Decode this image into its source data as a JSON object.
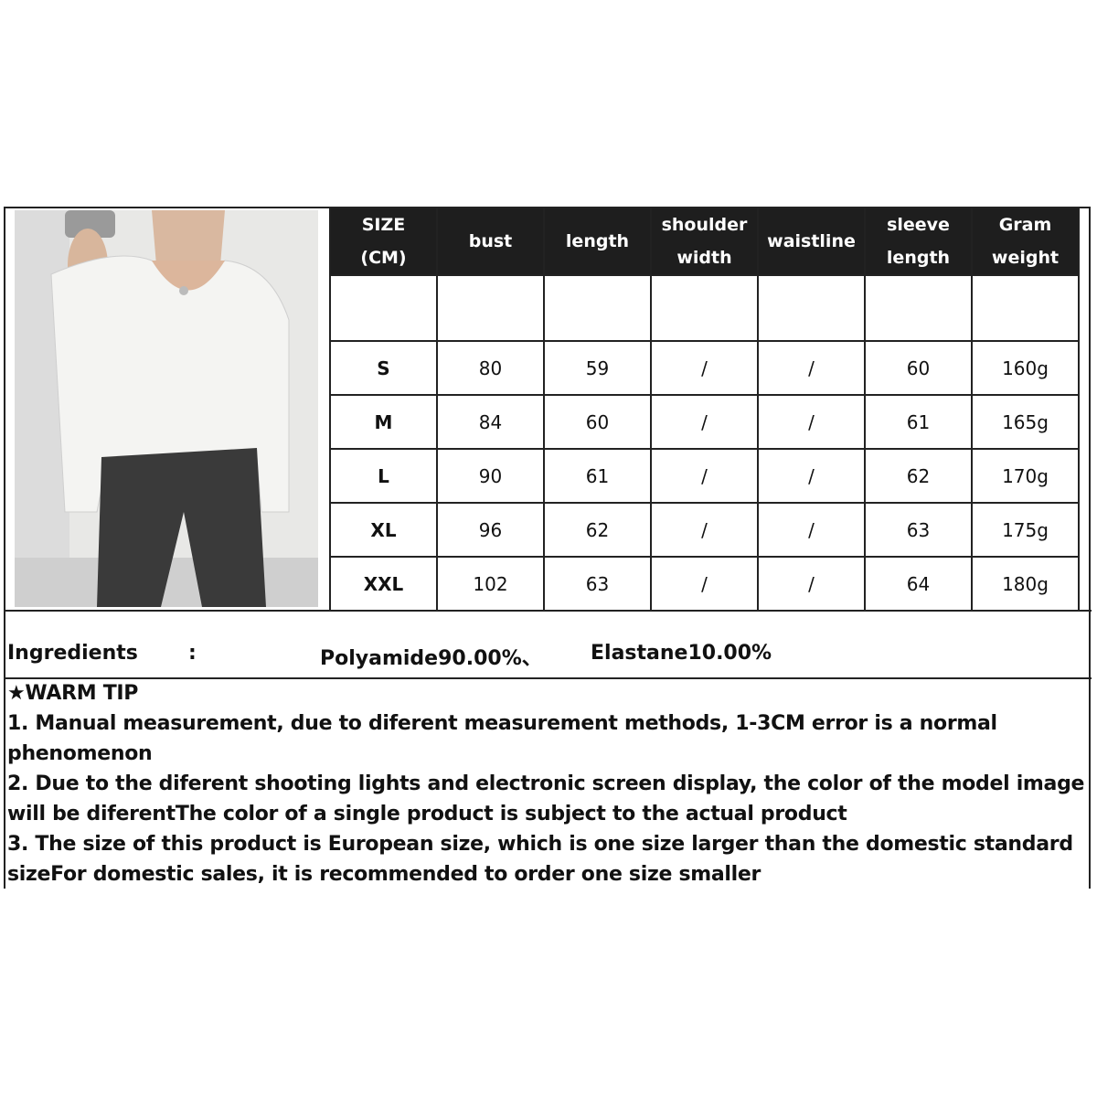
{
  "table": {
    "headers": [
      [
        "SIZE",
        "(CM)"
      ],
      [
        "bust"
      ],
      [
        "length"
      ],
      [
        "shoulder",
        "width"
      ],
      [
        "waistline"
      ],
      [
        "sleeve",
        "length"
      ],
      [
        "Gram",
        "weight"
      ]
    ],
    "rows": [
      [
        "S",
        "80",
        "59",
        "/",
        "/",
        "60",
        "160g"
      ],
      [
        "M",
        "84",
        "60",
        "/",
        "/",
        "61",
        "165g"
      ],
      [
        "L",
        "90",
        "61",
        "/",
        "/",
        "62",
        "170g"
      ],
      [
        "XL",
        "96",
        "62",
        "/",
        "/",
        "63",
        "175g"
      ],
      [
        "XXL",
        "102",
        "63",
        "/",
        "/",
        "64",
        "180g"
      ]
    ]
  },
  "ingredients": {
    "label": "Ingredients",
    "colon": ":",
    "part1": "Polyamide90.00%、",
    "part2": "Elastane10.00%"
  },
  "warm_tip": {
    "title": "★WARM TIP",
    "items": [
      "1. Manual measurement, due to diferent measurement methods, 1-3CM error is a normal phenomenon",
      "2. Due to the diferent shooting lights and electronic screen display, the color of the model image will be diferentThe color of a single product is subject to the actual product",
      "3. The size of this product is European size, which is one size larger than the domestic standard sizeFor domestic sales, it is recommended to order one size smaller"
    ]
  }
}
